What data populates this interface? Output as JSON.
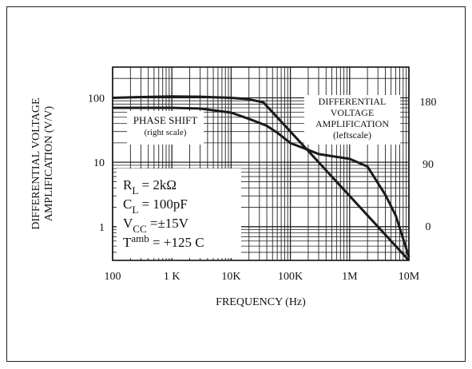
{
  "chart_data": {
    "type": "line",
    "xlabel": "FREQUENCY (Hz)",
    "ylabel": [
      "DIFFERENTIAL VOLTAGE",
      "AMPLIFICATION (V/V)"
    ],
    "x_scale": "log",
    "xlim": [
      100,
      10000000
    ],
    "x_ticks": [
      {
        "value": 100,
        "label": "100"
      },
      {
        "value": 1000,
        "label": "1 K"
      },
      {
        "value": 10000,
        "label": "10K"
      },
      {
        "value": 100000,
        "label": "100K"
      },
      {
        "value": 1000000,
        "label": "1M"
      },
      {
        "value": 10000000,
        "label": "10M"
      }
    ],
    "y_scale": "log",
    "ylim": [
      0.3,
      300
    ],
    "y_ticks": [
      {
        "value": 100,
        "label": "100"
      },
      {
        "value": 10,
        "label": "10"
      },
      {
        "value": 1,
        "label": "1"
      }
    ],
    "y2lim": [
      -50,
      230
    ],
    "y2_ticks": [
      {
        "value": 180,
        "label": "180"
      },
      {
        "value": 90,
        "label": "90"
      },
      {
        "value": 0,
        "label": "0"
      }
    ],
    "grid": true,
    "series": [
      {
        "axis": "left",
        "points": [
          [
            100,
            100
          ],
          [
            300,
            103
          ],
          [
            1000,
            105
          ],
          [
            3000,
            104
          ],
          [
            10000,
            100
          ],
          [
            20000,
            95
          ],
          [
            35000,
            85
          ],
          [
            60000,
            50
          ],
          [
            100000,
            30
          ],
          [
            200000,
            15
          ],
          [
            500000,
            6
          ],
          [
            1000000,
            3
          ],
          [
            3000000,
            1
          ],
          [
            6000000,
            0.5
          ],
          [
            10000000,
            0.3
          ]
        ]
      },
      {
        "axis": "right",
        "points": [
          [
            100,
            171
          ],
          [
            1000,
            171
          ],
          [
            3000,
            170
          ],
          [
            10000,
            164
          ],
          [
            20000,
            155
          ],
          [
            40000,
            145
          ],
          [
            60000,
            135
          ],
          [
            100000,
            120
          ],
          [
            200000,
            110
          ],
          [
            300000,
            104
          ],
          [
            500000,
            101
          ],
          [
            1000000,
            97
          ],
          [
            2000000,
            86
          ],
          [
            4000000,
            45
          ],
          [
            6000000,
            15
          ],
          [
            10000000,
            -45
          ]
        ]
      }
    ],
    "annotations": {
      "phase_label": [
        "PHASE SHIFT",
        "(right scale)"
      ],
      "gain_label": [
        "DIFFERENTIAL",
        "VOLTAGE",
        "AMPLIFICATION",
        "(leftscale)"
      ],
      "conditions": [
        {
          "name": "R",
          "sub": "L",
          "rest": " = 2kΩ"
        },
        {
          "name": "C",
          "sub": "L",
          "rest": " = 100pF"
        },
        {
          "name": "V",
          "sub": "CC",
          "rest": " =±15V"
        },
        {
          "name": "T",
          "sup": "amb",
          "rest": " = +125  C"
        }
      ]
    }
  }
}
